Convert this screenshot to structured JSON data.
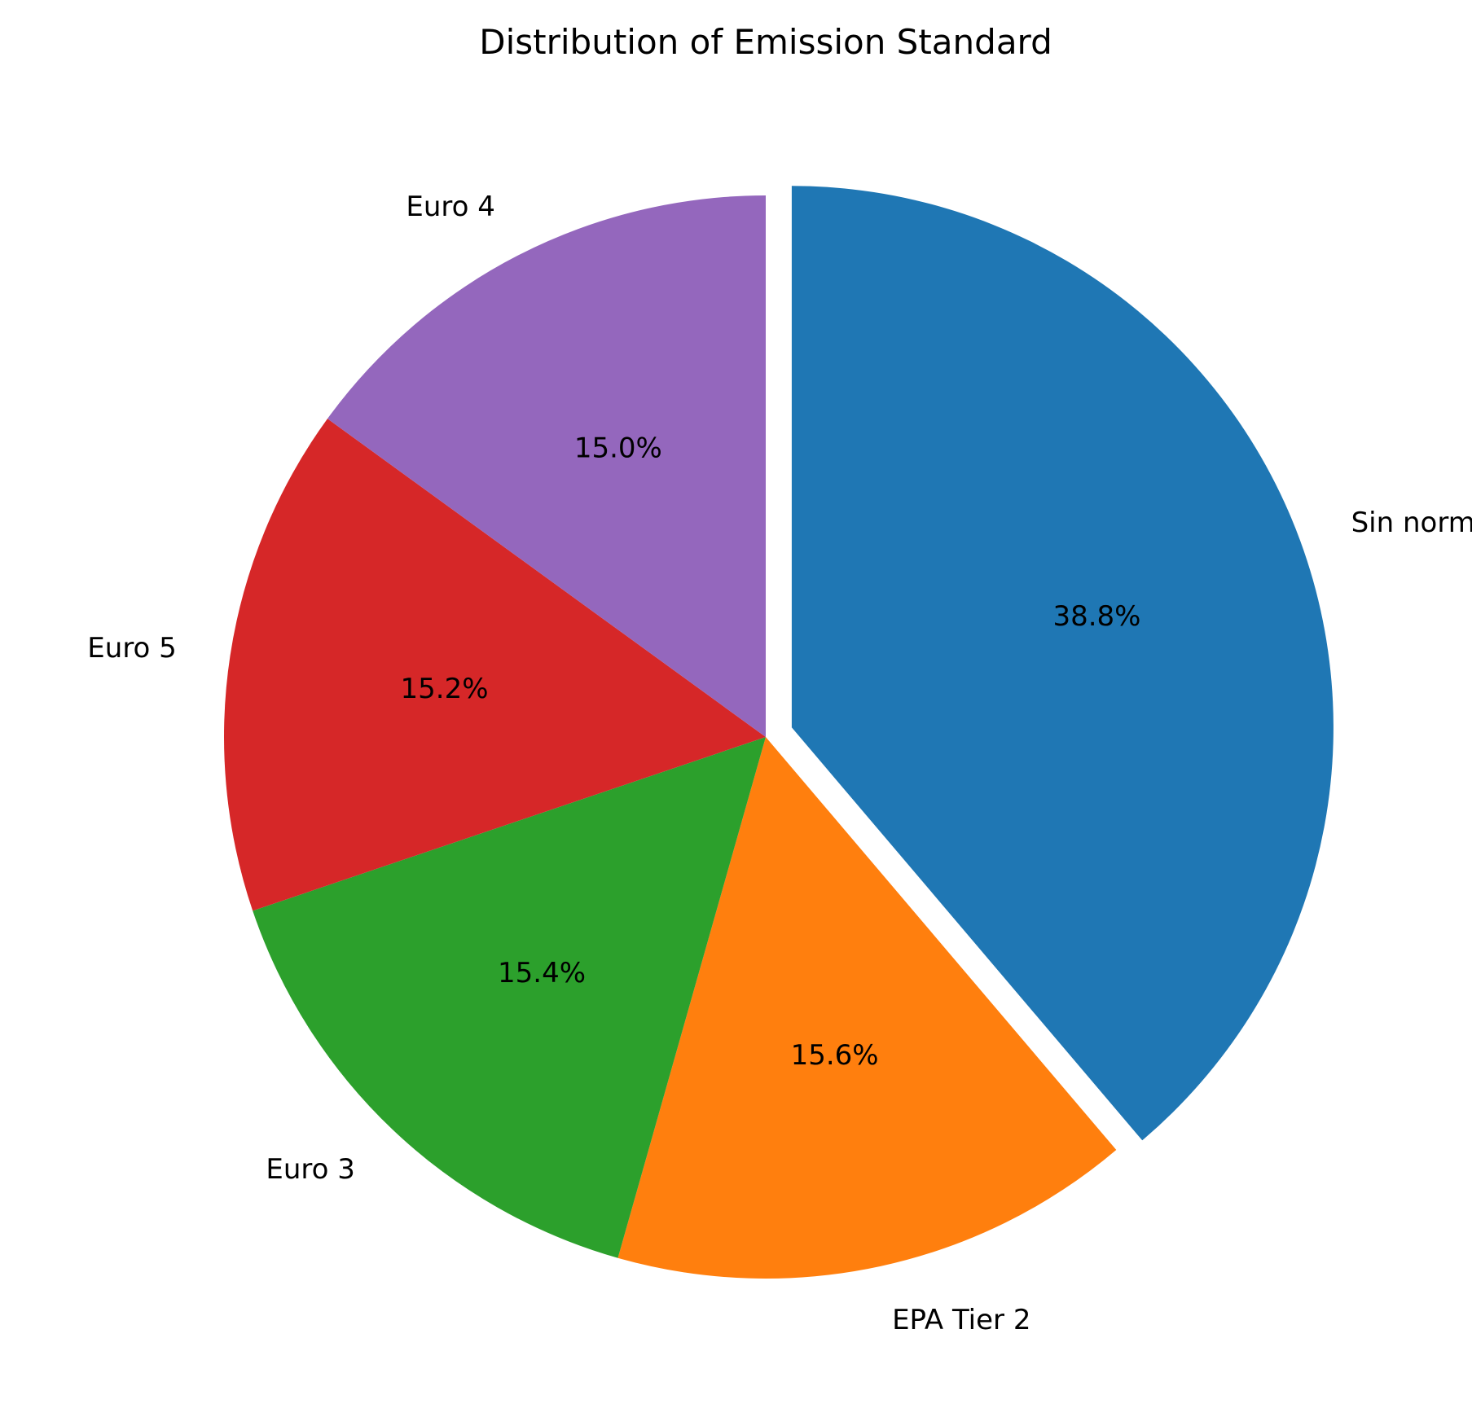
{
  "chart_data": {
    "type": "pie",
    "title": "Distribution of Emission Standard",
    "labels": [
      "Sin norma",
      "EPA Tier 2",
      "Euro 3",
      "Euro 5",
      "Euro 4"
    ],
    "values": [
      38.8,
      15.6,
      15.4,
      15.2,
      15.0
    ],
    "value_labels": [
      "38.8%",
      "15.6%",
      "15.4%",
      "15.2%",
      "15.0%"
    ],
    "colors": [
      "#1f77b4",
      "#ff7f0e",
      "#2ca02c",
      "#d62728",
      "#9467bd"
    ],
    "exploded": [
      true,
      false,
      false,
      false,
      false
    ],
    "start_angle_deg": 90,
    "direction": "clockwise"
  }
}
